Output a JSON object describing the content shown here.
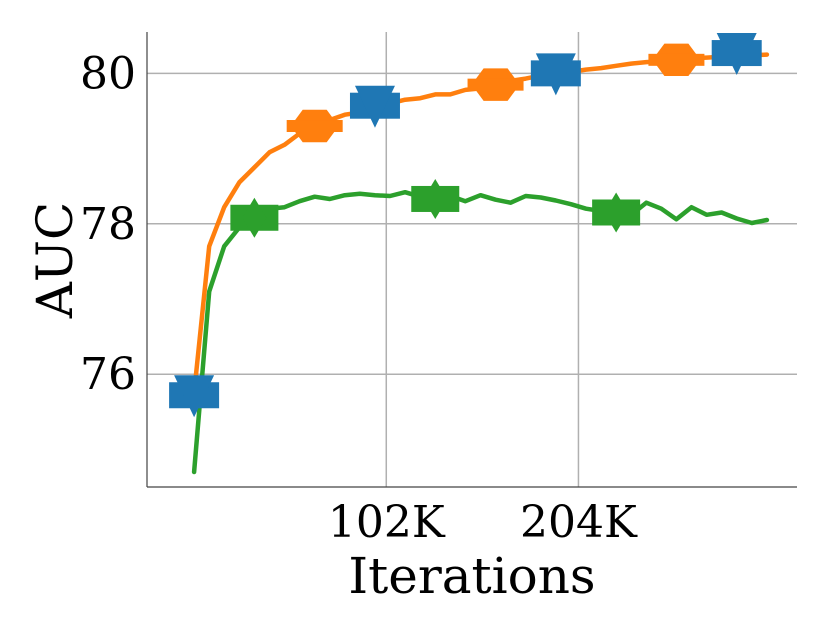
{
  "chart_data": {
    "type": "line",
    "title": "",
    "xlabel": "Iterations",
    "ylabel": "AUC",
    "xlim": [
      -25,
      320
    ],
    "ylim": [
      74.5,
      80.55
    ],
    "xticks": [
      {
        "value": 102,
        "label": "102K"
      },
      {
        "value": 204,
        "label": "204K"
      }
    ],
    "yticks": [
      {
        "value": 76,
        "label": "76"
      },
      {
        "value": 78,
        "label": "78"
      },
      {
        "value": 80,
        "label": "80"
      }
    ],
    "grid": true,
    "legend": "none",
    "series": [
      {
        "color": "#2ca02c",
        "marker": "square",
        "marker_x": [
          32,
          128,
          224
        ],
        "x": [
          0,
          8,
          16,
          24,
          32,
          40,
          48,
          56,
          64,
          72,
          80,
          88,
          96,
          104,
          112,
          120,
          128,
          136,
          144,
          152,
          160,
          168,
          176,
          184,
          192,
          200,
          208,
          216,
          224,
          232,
          240,
          248,
          256,
          264,
          272,
          280,
          288,
          296,
          304
        ],
        "y": [
          74.7,
          77.1,
          77.7,
          77.95,
          78.08,
          78.2,
          78.22,
          78.3,
          78.36,
          78.33,
          78.38,
          78.4,
          78.38,
          78.37,
          78.42,
          78.36,
          78.33,
          78.37,
          78.3,
          78.38,
          78.32,
          78.28,
          78.37,
          78.35,
          78.31,
          78.26,
          78.2,
          78.17,
          78.15,
          78.12,
          78.28,
          78.2,
          78.06,
          78.22,
          78.12,
          78.15,
          78.07,
          78.01,
          78.05
        ]
      },
      {
        "color": "#ff7f0e",
        "marker": "hexagon",
        "marker_x": [
          64,
          160,
          256
        ],
        "x": [
          0,
          8,
          16,
          24,
          32,
          40,
          48,
          56,
          64,
          72,
          80,
          88,
          96,
          104,
          112,
          120,
          128,
          136,
          144,
          152,
          160,
          168,
          176,
          184,
          192,
          200,
          208,
          216,
          224,
          232,
          240,
          248,
          256,
          264,
          272,
          280,
          288,
          296,
          304
        ],
        "y": [
          75.75,
          77.7,
          78.22,
          78.55,
          78.75,
          78.95,
          79.05,
          79.2,
          79.3,
          79.38,
          79.45,
          79.48,
          79.55,
          79.6,
          79.65,
          79.67,
          79.72,
          79.72,
          79.78,
          79.8,
          79.85,
          79.9,
          79.93,
          79.97,
          80.0,
          80.02,
          80.05,
          80.07,
          80.1,
          80.13,
          80.15,
          80.16,
          80.18,
          80.2,
          80.21,
          80.22,
          80.23,
          80.24,
          80.25
        ]
      },
      {
        "color": "#1f77b4",
        "marker": "triangle-down-square",
        "marker_x": [
          0,
          96,
          192,
          288
        ],
        "x": [
          0,
          96,
          192,
          288
        ],
        "y": [
          75.72,
          79.57,
          80.0,
          80.27
        ]
      }
    ]
  }
}
